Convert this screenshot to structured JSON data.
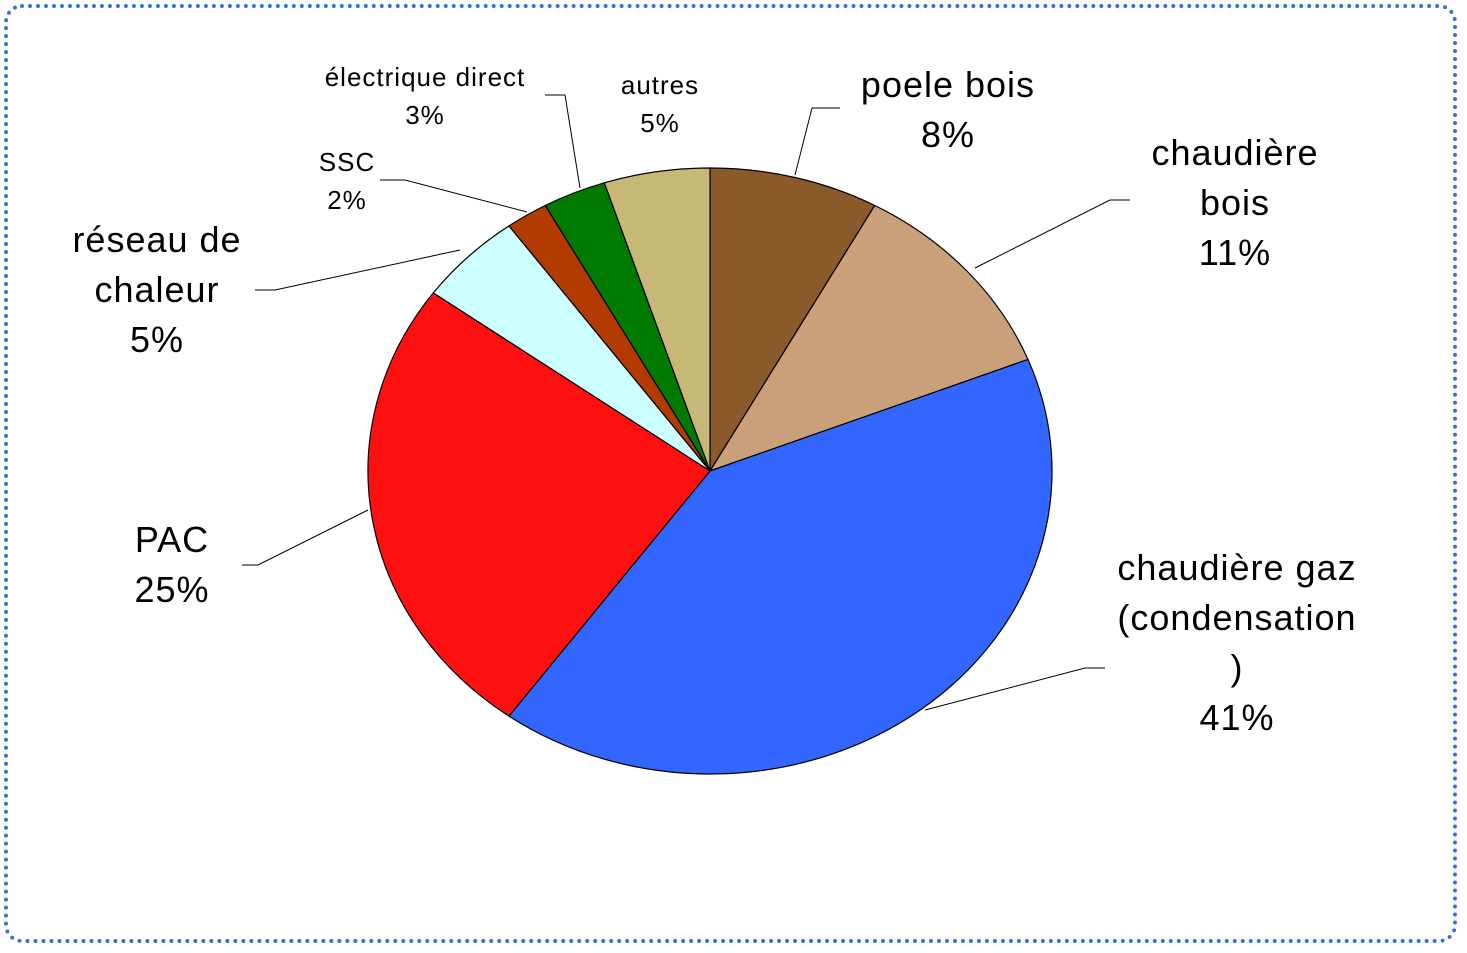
{
  "chart_data": {
    "type": "pie",
    "categories": [
      "poele bois",
      "chaudière bois",
      "chaudière gaz (condensation)",
      "PAC",
      "réseau de chaleur",
      "SSC",
      "électrique direct",
      "autres"
    ],
    "values": [
      8,
      11,
      41,
      25,
      5,
      2,
      3,
      5
    ],
    "value_labels": [
      "8%",
      "11%",
      "41%",
      "25%",
      "5%",
      "2%",
      "3%",
      "5%"
    ],
    "colors": [
      "#8b5a2b",
      "#c9a07a",
      "#3366ff",
      "#ff1010",
      "#ccffff",
      "#b33a00",
      "#007a00",
      "#c8b878"
    ]
  }
}
